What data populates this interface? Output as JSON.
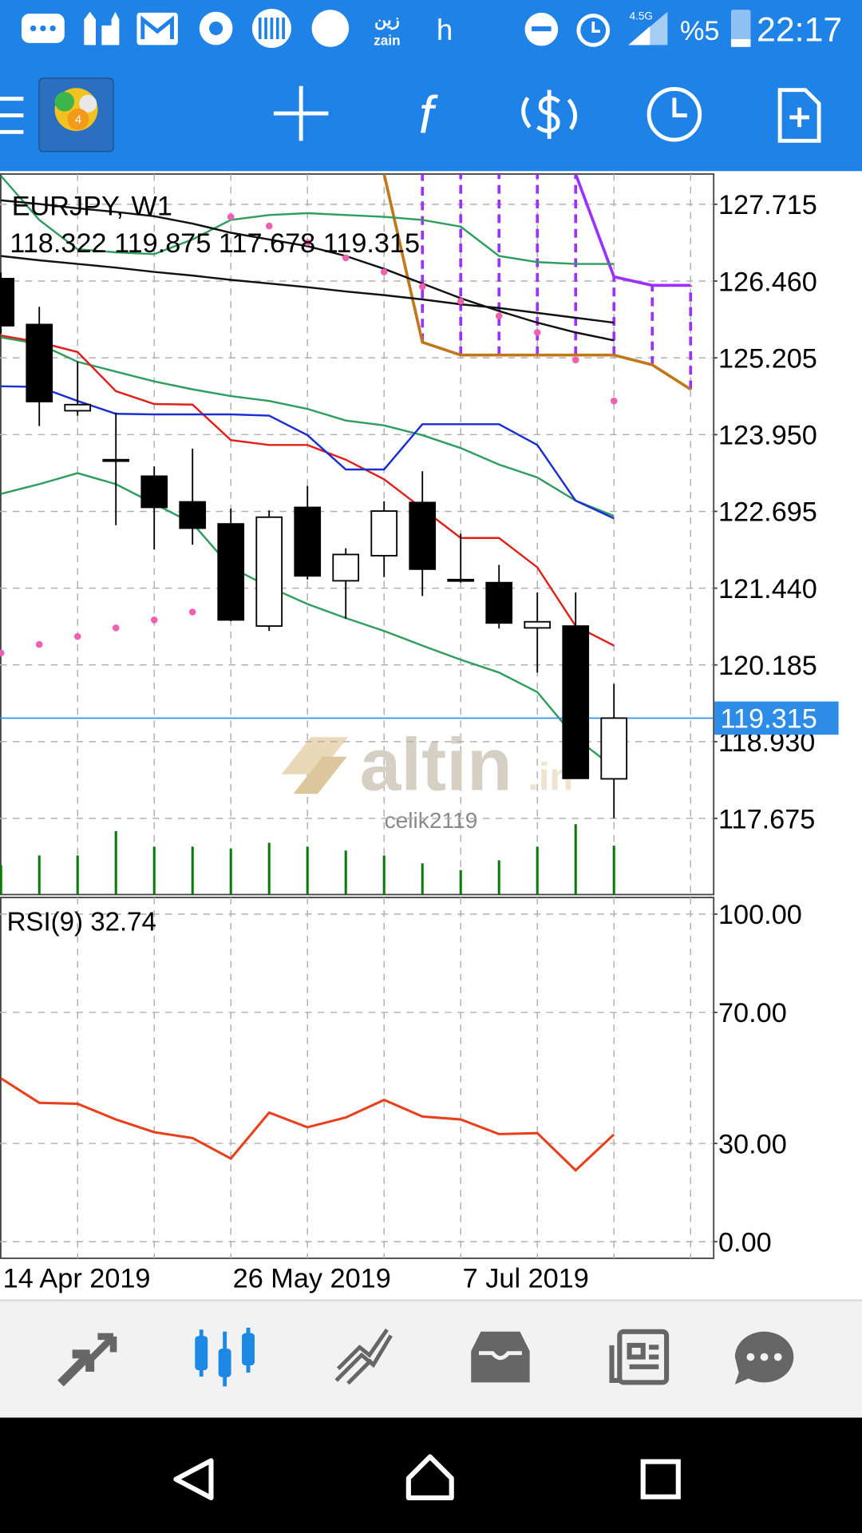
{
  "status_bar": {
    "carrier_ar": "زين",
    "carrier": "zain",
    "network_h": "h",
    "network": "4.5G",
    "battery": "%5",
    "time": "22:17"
  },
  "watermark": {
    "brand": "altin",
    "suffix": ".in",
    "user": "celik2119"
  },
  "chart_data": [
    {
      "type": "candlestick",
      "title": "EURJPY, W1",
      "subtitle": "118.322 119.875 117.678 119.315",
      "categories": [
        "14 Apr 2019",
        null,
        null,
        null,
        null,
        null,
        "26 May 2019",
        null,
        null,
        null,
        null,
        null,
        "7 Jul 2019",
        null,
        null,
        null,
        null,
        null,
        null
      ],
      "open": [
        126.5,
        125.75,
        124.34,
        123.54,
        123.27,
        122.85,
        122.49,
        120.82,
        122.76,
        121.56,
        121.97,
        122.84,
        121.58,
        121.53,
        120.79,
        120.82,
        118.322,
        null,
        null
      ],
      "high": [
        126.6,
        126.04,
        125.14,
        124.31,
        123.43,
        123.72,
        122.74,
        122.71,
        123.11,
        122.09,
        122.86,
        123.35,
        122.33,
        121.82,
        121.37,
        121.37,
        119.875,
        null,
        null
      ],
      "low": [
        125.6,
        124.09,
        124.26,
        122.47,
        122.07,
        122.15,
        120.9,
        120.74,
        121.58,
        120.94,
        121.62,
        121.31,
        121.53,
        120.78,
        120.06,
        118.33,
        117.678,
        null,
        null
      ],
      "close": [
        125.73,
        124.49,
        124.44,
        123.54,
        122.76,
        122.42,
        120.92,
        122.6,
        121.64,
        121.99,
        122.7,
        121.75,
        121.58,
        120.87,
        120.89,
        118.33,
        119.315,
        null,
        null
      ],
      "volumes": [
        30,
        40,
        40,
        65,
        49,
        49,
        47,
        53,
        49,
        45,
        40,
        32,
        25,
        35,
        49,
        72,
        50,
        null,
        null
      ],
      "volume_color": "#0a7a0a",
      "overlays": [
        {
          "color": "#2e9e5e",
          "values": [
            128.18,
            127.46,
            126.98,
            126.93,
            126.9,
            127.14,
            127.46,
            127.54,
            127.57,
            127.54,
            127.51,
            127.46,
            127.35,
            126.87,
            126.77,
            126.74,
            126.74,
            null,
            null
          ]
        },
        {
          "color": "#2e9e5e",
          "values": [
            125.54,
            125.43,
            125.14,
            124.98,
            124.82,
            124.69,
            124.58,
            124.5,
            124.37,
            124.18,
            124.1,
            123.94,
            123.73,
            123.46,
            123.25,
            122.87,
            122.62,
            null,
            null
          ]
        },
        {
          "color": "#2e9e5e",
          "values": [
            122.98,
            123.14,
            123.32,
            123.14,
            122.82,
            122.5,
            121.78,
            121.46,
            121.18,
            120.95,
            120.74,
            120.5,
            120.27,
            120.06,
            119.74,
            118.99,
            118.51,
            null,
            null
          ]
        },
        {
          "color": "#111111",
          "values": [
            127.78,
            127.72,
            127.65,
            127.59,
            127.52,
            127.4,
            127.25,
            127.14,
            127.03,
            126.87,
            126.66,
            126.42,
            126.18,
            125.97,
            125.78,
            125.62,
            125.49,
            null,
            null
          ]
        },
        {
          "color": "#111111",
          "values": [
            126.87,
            126.8,
            126.74,
            126.68,
            126.61,
            126.55,
            126.48,
            126.42,
            126.36,
            126.29,
            126.23,
            126.16,
            126.08,
            126.02,
            125.94,
            125.86,
            125.78,
            null,
            null
          ]
        },
        {
          "color": "#e0201b",
          "values": [
            125.57,
            125.46,
            125.3,
            124.66,
            124.45,
            124.44,
            123.86,
            123.78,
            123.78,
            123.54,
            123.22,
            122.74,
            122.26,
            122.26,
            121.78,
            120.82,
            120.5,
            null,
            null
          ]
        },
        {
          "color": "#1a2fd0",
          "values": [
            124.74,
            124.73,
            124.5,
            124.29,
            124.28,
            124.28,
            124.28,
            124.26,
            123.94,
            123.38,
            123.38,
            124.12,
            124.12,
            124.12,
            123.78,
            122.87,
            122.58,
            null,
            null
          ]
        }
      ],
      "cloud": {
        "fill_color": "#9b30ff",
        "span_a": {
          "color": "#c0781a",
          "values": [
            null,
            null,
            null,
            null,
            null,
            null,
            null,
            null,
            null,
            null,
            128.21,
            125.46,
            125.25,
            125.25,
            125.25,
            125.25,
            125.25,
            125.09,
            124.69
          ]
        },
        "span_b": {
          "color": "#9b30ff",
          "values": [
            null,
            null,
            null,
            null,
            null,
            null,
            null,
            null,
            null,
            null,
            null,
            null,
            null,
            null,
            null,
            128.21,
            126.53,
            126.39,
            126.39
          ]
        }
      },
      "sar": {
        "color": "#f060b0",
        "values": [
          120.38,
          120.52,
          120.65,
          120.79,
          120.92,
          121.05,
          127.51,
          127.36,
          127.09,
          126.84,
          126.61,
          126.37,
          126.13,
          125.89,
          125.62,
          125.17,
          124.5,
          null,
          null
        ]
      },
      "current_price": 119.315,
      "current_price_color": "#2d8ce8",
      "ylim": [
        116.43,
        128.21
      ],
      "yticks": [
        127.715,
        {
          "value": 126.46,
          "label": "126.460"
        },
        125.205,
        {
          "value": 123.95,
          "label": "123.950"
        },
        122.695,
        {
          "value": 121.44,
          "label": "121.440"
        },
        120.185,
        {
          "value": 118.93,
          "label": "118.930"
        },
        117.675
      ],
      "grid": true
    },
    {
      "type": "line",
      "title": "RSI(9) 32.74",
      "color": "#e8401c",
      "values": [
        49.85,
        42.39,
        42.09,
        37.31,
        33.43,
        31.64,
        25.37,
        39.4,
        34.93,
        37.91,
        43.28,
        38.21,
        37.31,
        32.84,
        33.13,
        21.79,
        32.74,
        null,
        null
      ],
      "ylim": [
        -5.07,
        105.07
      ],
      "yticks": [
        {
          "value": 100,
          "label": "100.00"
        },
        {
          "value": 70,
          "label": "70.00"
        },
        {
          "value": 30,
          "label": "30.00"
        },
        {
          "value": 0,
          "label": "0.00"
        }
      ],
      "grid": true
    }
  ]
}
